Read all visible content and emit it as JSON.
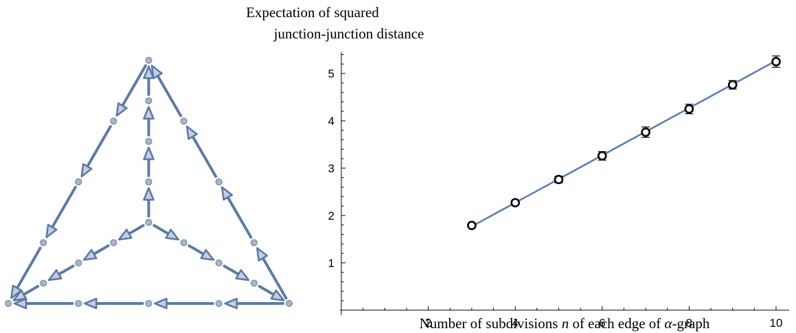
{
  "chart_data": {
    "type": "scatter",
    "title_lines": [
      "Expectation of squared",
      "junction-junction distance"
    ],
    "xlabel": {
      "before": "Number of subdivisions ",
      "var": "n",
      "middle": " of each edge of ",
      "greek": "α",
      "after": "-graph"
    },
    "ylabel": "",
    "xlim": [
      0,
      10.3
    ],
    "ylim": [
      -0.25,
      5.45
    ],
    "x_ticks": [
      2,
      4,
      6,
      8,
      10
    ],
    "y_ticks": [
      1,
      2,
      3,
      4,
      5
    ],
    "grid": false,
    "series": [
      {
        "style": "points-with-errorbars",
        "x": [
          3,
          4,
          5,
          6,
          7,
          8,
          9,
          10
        ],
        "y": [
          1.79,
          2.27,
          2.76,
          3.26,
          3.76,
          4.25,
          4.76,
          5.25
        ],
        "error": [
          0.02,
          0.05,
          0.07,
          0.09,
          0.11,
          0.1,
          0.09,
          0.12
        ]
      },
      {
        "style": "fit-line",
        "x": [
          3,
          10
        ],
        "y": [
          1.77,
          5.27
        ]
      }
    ],
    "colors": {
      "line": "#5a7fb0",
      "points": "#000000",
      "diagram_edge": "#5b7aa8",
      "diagram_node": "#a8b6cc"
    }
  },
  "diagram": {
    "description_free": true,
    "nodes": [
      [
        0,
        0
      ],
      [
        1,
        0
      ],
      [
        2,
        0
      ],
      [
        3,
        0
      ],
      [
        4,
        0
      ],
      [
        0.5,
        0.866
      ],
      [
        1,
        1.732
      ],
      [
        1.5,
        2.598
      ],
      [
        2,
        3.464
      ],
      [
        3.5,
        0.866
      ],
      [
        3,
        1.732
      ],
      [
        2.5,
        2.598
      ],
      [
        2,
        1.155
      ],
      [
        1.5,
        0.866
      ],
      [
        1,
        0.577
      ],
      [
        0.5,
        0.289
      ],
      [
        2.5,
        0.866
      ],
      [
        3,
        0.577
      ],
      [
        3.5,
        0.289
      ],
      [
        2,
        1.732
      ],
      [
        2,
        2.309
      ],
      [
        2,
        2.887
      ]
    ],
    "edges": [
      [
        4,
        3
      ],
      [
        3,
        2
      ],
      [
        2,
        1
      ],
      [
        1,
        0
      ],
      [
        8,
        7
      ],
      [
        7,
        6
      ],
      [
        6,
        5
      ],
      [
        5,
        0
      ],
      [
        4,
        9
      ],
      [
        9,
        10
      ],
      [
        10,
        11
      ],
      [
        11,
        8
      ],
      [
        12,
        13
      ],
      [
        13,
        14
      ],
      [
        14,
        15
      ],
      [
        15,
        0
      ],
      [
        12,
        16
      ],
      [
        16,
        17
      ],
      [
        17,
        18
      ],
      [
        18,
        4
      ],
      [
        12,
        19
      ],
      [
        19,
        20
      ],
      [
        20,
        21
      ],
      [
        21,
        8
      ]
    ]
  }
}
